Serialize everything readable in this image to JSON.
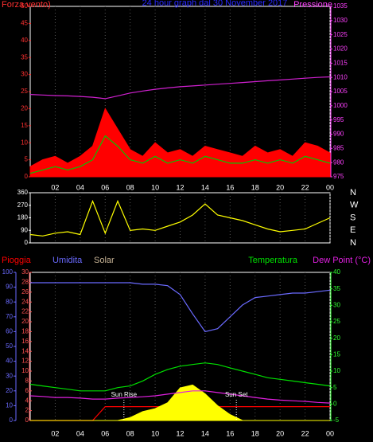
{
  "chart_data": [
    {
      "type": "line",
      "title": "24 hour graph dal 30 November 2017",
      "y_label": "Forza vento)",
      "y2_label": "Pressione",
      "x": [
        0,
        1,
        2,
        3,
        4,
        5,
        6,
        7,
        8,
        9,
        10,
        11,
        12,
        13,
        14,
        15,
        16,
        17,
        18,
        19,
        20,
        21,
        22,
        23,
        24
      ],
      "xlim": [
        0,
        24
      ],
      "xticks": [
        {
          "value": 2,
          "label": "02"
        },
        {
          "value": 4,
          "label": "04"
        },
        {
          "value": 6,
          "label": "06"
        },
        {
          "value": 8,
          "label": "08"
        },
        10,
        12,
        14,
        16,
        18,
        20,
        22,
        {
          "value": 24,
          "label": "00"
        }
      ],
      "ylim": [
        0,
        50
      ],
      "yticks": [
        0,
        5,
        10,
        15,
        20,
        25,
        30,
        35,
        40,
        45,
        50
      ],
      "y2lim": [
        975,
        1035
      ],
      "y2ticks": [
        975,
        980,
        985,
        990,
        995,
        1000,
        1005,
        1010,
        1015,
        1020,
        1025,
        1030,
        1035
      ],
      "series": [
        {
          "color": "#ff0000",
          "fill": true,
          "values": [
            3,
            5,
            6,
            4,
            6,
            9,
            20,
            14,
            8,
            6,
            10,
            7,
            8,
            6,
            9,
            8,
            7,
            6,
            9,
            7,
            8,
            6,
            10,
            9,
            7
          ]
        },
        {
          "color": "#00c800",
          "values": [
            1,
            2,
            3,
            2,
            3,
            5,
            12,
            9,
            5,
            4,
            6,
            4,
            5,
            4,
            6,
            5,
            4,
            4,
            5,
            4,
            5,
            4,
            6,
            5,
            4
          ]
        },
        {
          "color": "#d020d0",
          "axis": "y2",
          "values": [
            1004,
            1003.8,
            1003.6,
            1003.5,
            1003.3,
            1003,
            1002.5,
            1003.5,
            1004.5,
            1005.2,
            1005.8,
            1006.3,
            1006.7,
            1007,
            1007.3,
            1007.6,
            1007.9,
            1008.2,
            1008.5,
            1008.8,
            1009.1,
            1009.4,
            1009.7,
            1010,
            1010.2
          ]
        }
      ]
    },
    {
      "type": "line",
      "compass_labels": [
        "N",
        "W",
        "S",
        "E",
        "N"
      ],
      "x": [
        0,
        1,
        2,
        3,
        4,
        5,
        6,
        7,
        8,
        9,
        10,
        11,
        12,
        13,
        14,
        15,
        16,
        17,
        18,
        19,
        20,
        21,
        22,
        23,
        24
      ],
      "xlim": [
        0,
        24
      ],
      "ylim": [
        0,
        360
      ],
      "yticks": [
        0,
        90,
        180,
        270,
        360
      ],
      "series": [
        {
          "color": "#ffff00",
          "values": [
            60,
            50,
            70,
            80,
            60,
            300,
            70,
            300,
            90,
            100,
            90,
            120,
            150,
            200,
            280,
            200,
            180,
            160,
            130,
            100,
            80,
            90,
            100,
            140,
            180
          ]
        }
      ]
    },
    {
      "type": "line",
      "x": [
        0,
        1,
        2,
        3,
        4,
        5,
        6,
        7,
        8,
        9,
        10,
        11,
        12,
        13,
        14,
        15,
        16,
        17,
        18,
        19,
        20,
        21,
        22,
        23,
        24
      ],
      "xlim": [
        0,
        24
      ],
      "ylim": [
        0,
        100
      ],
      "yticks": [
        0,
        10,
        20,
        30,
        40,
        50,
        60,
        70,
        80,
        90,
        100
      ],
      "y3lim": [
        0,
        30
      ],
      "y3ticks": [
        0,
        2,
        4,
        6,
        8,
        10,
        12,
        14,
        16,
        18,
        20,
        22,
        24,
        26,
        28,
        30
      ],
      "y2lim": [
        -5,
        40
      ],
      "y2ticks": [
        -5,
        0,
        5,
        10,
        15,
        20,
        25,
        30,
        35,
        40
      ],
      "series": [
        {
          "name": "Pioggia",
          "color": "#ff0000",
          "axis": "y3",
          "values": [
            0,
            0,
            0,
            0,
            0,
            0,
            2.8,
            2.8,
            2.8,
            2.8,
            2.8,
            2.8,
            2.8,
            2.8,
            2.8,
            2.8,
            2.8,
            2.8,
            2.8,
            2.8,
            2.8,
            2.8,
            2.8,
            2.8,
            2.8
          ]
        },
        {
          "name": "Umidita",
          "color": "#6a6aff",
          "values": [
            93,
            93,
            93,
            93,
            93,
            93,
            93,
            93,
            93,
            92,
            92,
            91,
            85,
            72,
            60,
            62,
            70,
            78,
            83,
            84,
            85,
            86,
            86,
            87,
            88
          ]
        },
        {
          "name": "Solar",
          "color": "#ffff00",
          "label_color": "#c8b496",
          "fill": true,
          "values": [
            0,
            0,
            0,
            0,
            0,
            0,
            0,
            0,
            2,
            6,
            8,
            12,
            22,
            24,
            18,
            10,
            4,
            0,
            0,
            0,
            0,
            0,
            0,
            0,
            0
          ]
        },
        {
          "name": "Temperatura",
          "color": "#00e000",
          "axis": "y2",
          "values": [
            6,
            5.5,
            5,
            4.5,
            4,
            4,
            4,
            5,
            5.5,
            7,
            9,
            10.5,
            11.5,
            12,
            12.5,
            12,
            11,
            10,
            9,
            8,
            7.5,
            7,
            6.5,
            6,
            5.5
          ]
        },
        {
          "name": "Dew Point (°C)",
          "color": "#e020e0",
          "axis": "y2",
          "values": [
            2.5,
            2.3,
            2,
            2,
            1.8,
            1.5,
            1.5,
            1.8,
            2,
            2.2,
            2.5,
            3,
            3.5,
            4,
            4,
            3.5,
            3,
            2.5,
            2,
            1.5,
            1.2,
            1,
            0.8,
            0.5,
            0.3
          ]
        }
      ],
      "annotations": [
        {
          "text": "Sun Rise",
          "x": 7.5
        },
        {
          "text": "Sun Set",
          "x": 16.5
        }
      ]
    }
  ]
}
